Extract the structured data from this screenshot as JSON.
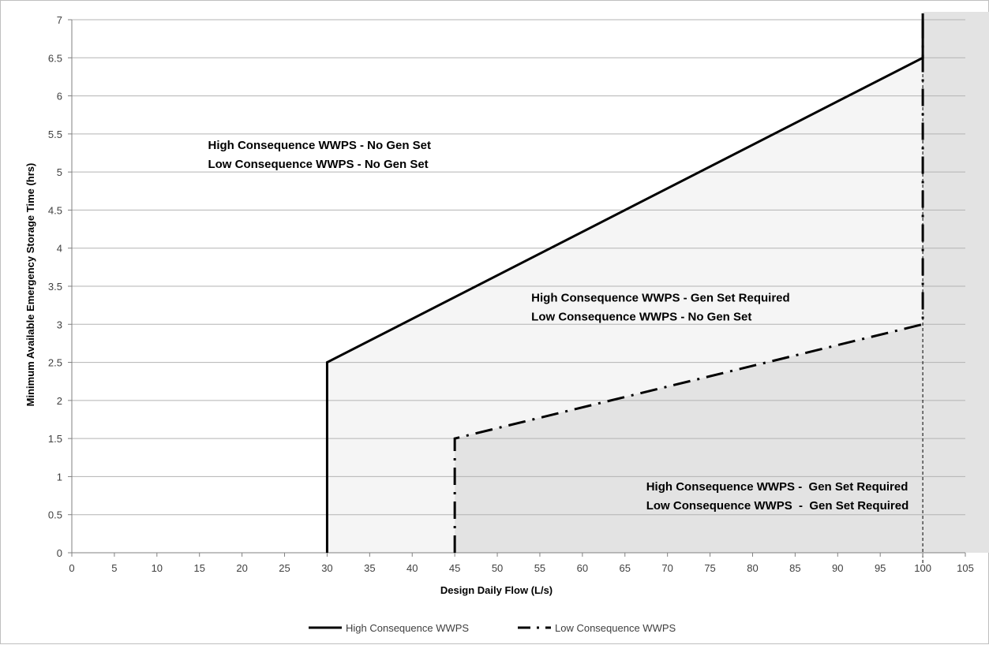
{
  "chart_data": {
    "type": "line",
    "title": "",
    "xlabel": "Design Daily Flow (L/s)",
    "ylabel": "Minimum Available Emergency Storage Time (hrs)",
    "xlim": [
      0,
      105
    ],
    "ylim": [
      0,
      7
    ],
    "x_ticks": [
      0,
      5,
      10,
      15,
      20,
      25,
      30,
      35,
      40,
      45,
      50,
      55,
      60,
      65,
      70,
      75,
      80,
      85,
      90,
      95,
      100,
      105
    ],
    "y_ticks": [
      0,
      0.5,
      1,
      1.5,
      2,
      2.5,
      3,
      3.5,
      4,
      4.5,
      5,
      5.5,
      6,
      6.5,
      7
    ],
    "y_tick_labels": [
      "0",
      "0.5",
      "1",
      "1.5",
      "2",
      "2.5",
      "3",
      "3.5",
      "4",
      "4.5",
      "5",
      "5.5",
      "6",
      "6.5",
      "7"
    ],
    "grid": "horizontal",
    "legend_position": "bottom",
    "series": [
      {
        "name": "High Consequence WWPS",
        "style": "solid",
        "color": "#000000",
        "points": [
          [
            30,
            0
          ],
          [
            30,
            2.5
          ],
          [
            100,
            6.5
          ],
          [
            100,
            7
          ]
        ]
      },
      {
        "name": "Low Consequence WWPS",
        "style": "dash-dot",
        "color": "#000000",
        "points": [
          [
            45,
            0
          ],
          [
            45,
            1.5
          ],
          [
            100,
            3
          ],
          [
            100,
            7
          ]
        ]
      }
    ],
    "reference_lines": [
      {
        "x": 100,
        "style": "dotted",
        "color": "#000000"
      }
    ],
    "regions": [
      {
        "name": "light-region",
        "color": "#f5f5f5",
        "polygon": [
          [
            30,
            0
          ],
          [
            30,
            2.5
          ],
          [
            100,
            6.5
          ],
          [
            100,
            0
          ]
        ]
      },
      {
        "name": "medium-region",
        "color": "#e3e3e3",
        "polygon": [
          [
            45,
            0
          ],
          [
            45,
            1.5
          ],
          [
            100,
            3
          ],
          [
            100,
            0
          ]
        ]
      },
      {
        "name": "right-region",
        "color": "#e3e3e3",
        "polygon": [
          [
            100,
            0
          ],
          [
            100,
            7
          ],
          [
            105,
            7
          ],
          [
            105,
            0
          ]
        ]
      }
    ],
    "annotations": [
      {
        "lines": [
          "High Consequence WWPS - No Gen Set",
          "Low Consequence WWPS - No Gen Set"
        ],
        "x": 16,
        "y": 5.3
      },
      {
        "lines": [
          "High Consequence WWPS - Gen Set Required",
          "Low Consequence WWPS - No Gen Set"
        ],
        "x": 54,
        "y": 3.3
      },
      {
        "lines": [
          "High Consequence WWPS -  Gen Set Required",
          "Low Consequence WWPS  -  Gen Set Required"
        ],
        "x": 67.5,
        "y": 0.82
      }
    ]
  }
}
